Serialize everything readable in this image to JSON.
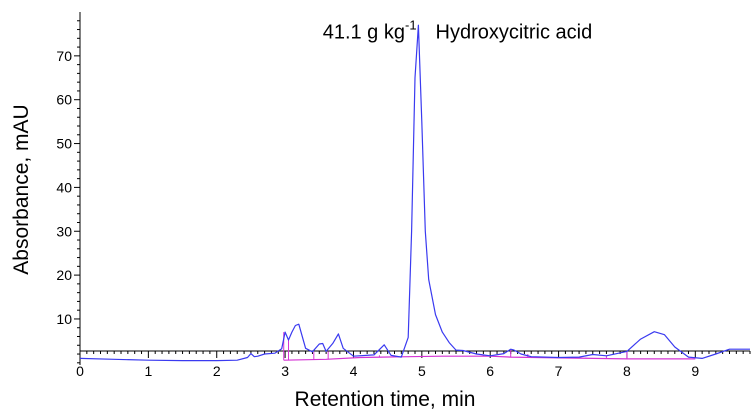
{
  "chart_data": {
    "type": "line",
    "title": "",
    "xlabel": "Retention time, min",
    "ylabel": "Absorbance, mAU",
    "xlim": [
      0,
      9.8
    ],
    "ylim": [
      -0.5,
      80
    ],
    "x_ticks": [
      0,
      1,
      2,
      3,
      4,
      5,
      6,
      7,
      8,
      9
    ],
    "y_ticks": [
      10,
      20,
      30,
      40,
      50,
      60,
      70
    ],
    "grid": false,
    "colors": {
      "signal": "#3a3af0",
      "baseline": "#d433d4",
      "axis": "#000000"
    },
    "annotations": [
      {
        "text": "41.1 g kg",
        "superscript": "-1",
        "x": 3.55,
        "y": 74
      },
      {
        "text": "Hydroxycitric acid",
        "x": 5.2,
        "y": 74
      }
    ],
    "series": [
      {
        "role": "signal",
        "x": [
          0,
          0.5,
          1.0,
          1.5,
          2.0,
          2.3,
          2.45,
          2.5,
          2.55,
          2.6,
          2.7,
          2.85,
          2.95,
          3.0,
          3.05,
          3.1,
          3.15,
          3.2,
          3.3,
          3.4,
          3.5,
          3.55,
          3.6,
          3.7,
          3.78,
          3.85,
          4.0,
          4.3,
          4.45,
          4.55,
          4.7,
          4.8,
          4.85,
          4.9,
          4.95,
          5.0,
          5.05,
          5.1,
          5.2,
          5.3,
          5.4,
          5.5,
          5.6,
          5.8,
          6.0,
          6.2,
          6.3,
          6.35,
          6.45,
          6.6,
          7.0,
          7.3,
          7.5,
          7.7,
          8.0,
          8.2,
          8.4,
          8.55,
          8.7,
          8.9,
          9.1,
          9.3,
          9.5,
          9.8
        ],
        "y": [
          1.0,
          0.8,
          0.6,
          0.5,
          0.5,
          0.6,
          1.2,
          2.1,
          1.4,
          1.5,
          2.0,
          2.2,
          3.2,
          7.0,
          5.2,
          7.0,
          8.5,
          8.8,
          3.3,
          2.5,
          4.3,
          4.4,
          2.6,
          4.5,
          6.6,
          3.3,
          1.5,
          1.8,
          4.1,
          1.7,
          1.3,
          5.8,
          30.0,
          65.0,
          77.0,
          55.0,
          30.0,
          19.0,
          11.0,
          7.0,
          4.6,
          2.9,
          2.8,
          2.0,
          1.6,
          2.1,
          3.1,
          2.9,
          2.0,
          1.4,
          1.2,
          1.3,
          1.9,
          1.6,
          2.6,
          5.4,
          7.1,
          6.4,
          3.6,
          1.3,
          1.0,
          2.0,
          3.1,
          3.1
        ]
      },
      {
        "role": "baseline",
        "x": [
          2.98,
          3.6,
          4.1,
          4.8,
          5.3,
          6.0,
          6.3,
          7.5,
          8.0,
          8.9,
          9.0
        ],
        "y": [
          0.6,
          0.8,
          1.2,
          1.4,
          1.5,
          1.5,
          1.3,
          1.0,
          0.9,
          0.9,
          0.9
        ]
      },
      {
        "role": "integration-markers",
        "x": [
          2.98,
          3.05,
          3.42,
          3.63,
          4.38,
          4.8,
          5.9,
          6.3,
          6.55,
          7.4,
          7.7,
          8.0
        ],
        "y": [
          7.0,
          5.2,
          2.5,
          2.6,
          1.7,
          1.3,
          1.7,
          2.9,
          2.0,
          1.2,
          1.6,
          2.6
        ]
      }
    ]
  }
}
